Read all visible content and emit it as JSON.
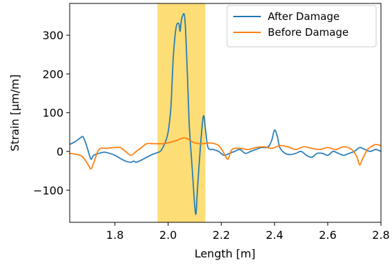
{
  "chart_data": {
    "type": "line",
    "title": "",
    "xlabel": "Length [m]",
    "ylabel": "Strain [μm/m]",
    "xlim": [
      1.63,
      2.8
    ],
    "ylim": [
      -183,
      382
    ],
    "xticks": [
      1.8,
      2.0,
      2.2,
      2.4,
      2.6,
      2.8
    ],
    "xtick_labels": [
      "1.8",
      "2.0",
      "2.2",
      "2.4",
      "2.6",
      "2.8"
    ],
    "yticks": [
      -100,
      0,
      100,
      200,
      300
    ],
    "ytick_labels": [
      "−100",
      "0",
      "100",
      "200",
      "300"
    ],
    "grid": false,
    "legend_position": "top-right",
    "highlight_region": {
      "x_start": 1.96,
      "x_end": 2.14,
      "color": "#fcd75e"
    },
    "series": [
      {
        "name": "After Damage",
        "color": "#1f77b4",
        "x": [
          1.63,
          1.65,
          1.67,
          1.68,
          1.69,
          1.7,
          1.71,
          1.72,
          1.74,
          1.76,
          1.78,
          1.8,
          1.82,
          1.84,
          1.86,
          1.87,
          1.88,
          1.9,
          1.92,
          1.94,
          1.96,
          1.97,
          1.98,
          1.99,
          2.0,
          2.01,
          2.015,
          2.02,
          2.03,
          2.04,
          2.045,
          2.05,
          2.06,
          2.065,
          2.07,
          2.075,
          2.08,
          2.09,
          2.1,
          2.105,
          2.11,
          2.12,
          2.13,
          2.135,
          2.14,
          2.15,
          2.17,
          2.19,
          2.21,
          2.23,
          2.25,
          2.27,
          2.29,
          2.31,
          2.33,
          2.35,
          2.37,
          2.38,
          2.39,
          2.4,
          2.41,
          2.42,
          2.44,
          2.46,
          2.48,
          2.5,
          2.52,
          2.54,
          2.56,
          2.58,
          2.6,
          2.62,
          2.64,
          2.66,
          2.68,
          2.7,
          2.72,
          2.74,
          2.76,
          2.78,
          2.8
        ],
        "y": [
          18,
          25,
          35,
          38,
          22,
          0,
          -20,
          -10,
          -5,
          -2,
          -5,
          -10,
          -18,
          -25,
          -28,
          -25,
          -28,
          -22,
          -15,
          -8,
          -3,
          0,
          10,
          25,
          50,
          110,
          180,
          250,
          320,
          330,
          310,
          340,
          355,
          320,
          240,
          150,
          60,
          -40,
          -140,
          -160,
          -100,
          0,
          80,
          90,
          60,
          10,
          5,
          0,
          -10,
          -5,
          0,
          5,
          -5,
          0,
          5,
          10,
          10,
          15,
          30,
          55,
          40,
          10,
          -5,
          -8,
          -5,
          0,
          -10,
          -15,
          -5,
          -5,
          -10,
          0,
          -5,
          -10,
          -5,
          0,
          10,
          5,
          0,
          5,
          0
        ]
      },
      {
        "name": "Before Damage",
        "color": "#ff7f0e",
        "x": [
          1.63,
          1.66,
          1.68,
          1.7,
          1.71,
          1.72,
          1.74,
          1.77,
          1.8,
          1.82,
          1.84,
          1.86,
          1.88,
          1.9,
          1.92,
          1.95,
          1.98,
          2.0,
          2.03,
          2.06,
          2.08,
          2.1,
          2.13,
          2.16,
          2.19,
          2.21,
          2.225,
          2.24,
          2.27,
          2.3,
          2.33,
          2.36,
          2.39,
          2.42,
          2.45,
          2.48,
          2.51,
          2.54,
          2.57,
          2.6,
          2.63,
          2.66,
          2.69,
          2.71,
          2.72,
          2.73,
          2.75,
          2.77,
          2.78,
          2.8
        ],
        "y": [
          -5,
          -8,
          -15,
          -35,
          -45,
          -30,
          5,
          8,
          10,
          10,
          0,
          -10,
          0,
          10,
          20,
          20,
          20,
          22,
          28,
          35,
          30,
          22,
          20,
          22,
          15,
          -5,
          -20,
          5,
          8,
          5,
          10,
          12,
          8,
          15,
          12,
          5,
          12,
          8,
          5,
          10,
          5,
          12,
          5,
          -15,
          -35,
          -20,
          5,
          15,
          18,
          15
        ]
      }
    ]
  }
}
